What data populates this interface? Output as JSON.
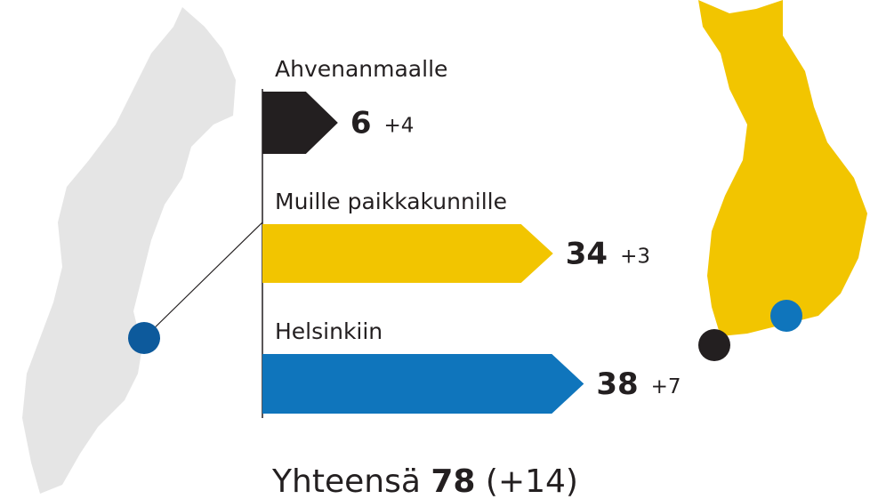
{
  "chart_data": {
    "type": "arrow-bar",
    "categories": [
      "Ahvenanmaalle",
      "Muille paikkakunnille",
      "Helsinkiin"
    ],
    "series": [
      {
        "name": null,
        "values": [
          6,
          34,
          38
        ],
        "colors": [
          "#231f20",
          "#f2c500",
          "#0f75bc"
        ]
      },
      {
        "name": null,
        "values": [
          4,
          3,
          7
        ],
        "value_labels": [
          "+4",
          "+3",
          "+7"
        ]
      }
    ],
    "total": {
      "label": "Yhteensä",
      "value": 78,
      "change": {
        "value": 14,
        "label": "(+14)"
      }
    }
  }
}
